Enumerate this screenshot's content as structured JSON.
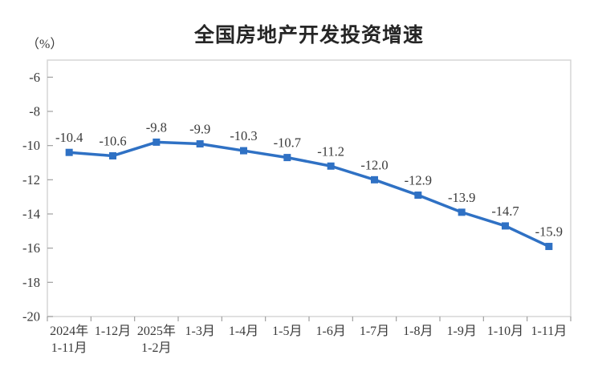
{
  "chart_data": {
    "type": "line",
    "title": "全国房地产开发投资增速",
    "y_unit_label": "（%）",
    "categories": [
      "2024年\n1-11月",
      "1-12月",
      "2025年\n1-2月",
      "1-3月",
      "1-4月",
      "1-5月",
      "1-6月",
      "1-7月",
      "1-8月",
      "1-9月",
      "1-10月",
      "1-11月"
    ],
    "values": [
      -10.4,
      -10.6,
      -9.8,
      -9.9,
      -10.3,
      -10.7,
      -11.2,
      -12.0,
      -12.9,
      -13.9,
      -14.7,
      -15.9
    ],
    "y_ticks": [
      -6,
      -8,
      -10,
      -12,
      -14,
      -16,
      -18,
      -20
    ],
    "ylim": [
      -20,
      -5
    ],
    "grid": false,
    "legend": "none",
    "marker": "square",
    "colors": {
      "line": "#2F71C4",
      "marker": "#2F71C4",
      "text": "#3A3A3A",
      "border": "#D6D6D6",
      "tick": "#A0A0A0",
      "title": "#262626"
    }
  }
}
